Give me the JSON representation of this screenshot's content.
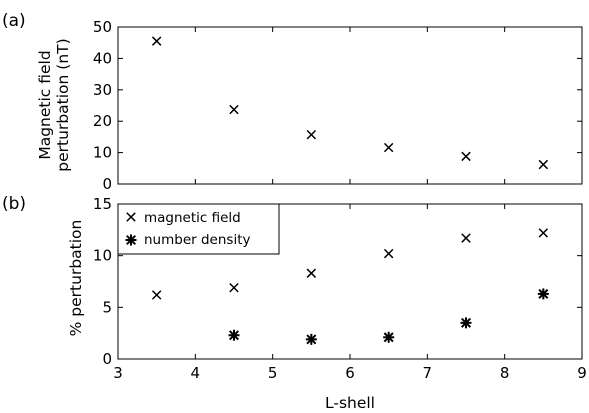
{
  "chart_data": [
    {
      "type": "scatter",
      "panel_label": "(a)",
      "ylabel_lines": [
        "Magnetic field",
        "perturbation (nT)"
      ],
      "xlim": [
        3,
        9
      ],
      "ylim": [
        0,
        50
      ],
      "xticks": [
        3,
        4,
        5,
        6,
        7,
        8,
        9
      ],
      "yticks": [
        0,
        10,
        20,
        30,
        40,
        50
      ],
      "show_xtick_labels": false,
      "series": [
        {
          "marker": "x",
          "x": [
            3.5,
            4.5,
            5.5,
            6.5,
            7.5,
            8.5
          ],
          "y": [
            45.5,
            23.7,
            15.7,
            11.6,
            8.8,
            6.2
          ]
        }
      ]
    },
    {
      "type": "scatter",
      "panel_label": "(b)",
      "ylabel": "% perturbation",
      "xlabel": "L-shell",
      "xlim": [
        3,
        9
      ],
      "ylim": [
        0,
        15
      ],
      "xticks": [
        3,
        4,
        5,
        6,
        7,
        8,
        9
      ],
      "yticks": [
        0,
        5,
        10,
        15
      ],
      "show_xtick_labels": true,
      "legend_position": "top-left",
      "series": [
        {
          "name": "magnetic field",
          "marker": "x",
          "x": [
            3.5,
            4.5,
            5.5,
            6.5,
            7.5,
            8.5
          ],
          "y": [
            6.2,
            6.9,
            8.3,
            10.2,
            11.7,
            12.2
          ]
        },
        {
          "name": "number density",
          "marker": "asterisk",
          "x": [
            4.5,
            5.5,
            6.5,
            7.5,
            8.5
          ],
          "y": [
            2.3,
            1.9,
            2.1,
            3.5,
            6.3
          ]
        }
      ]
    }
  ]
}
